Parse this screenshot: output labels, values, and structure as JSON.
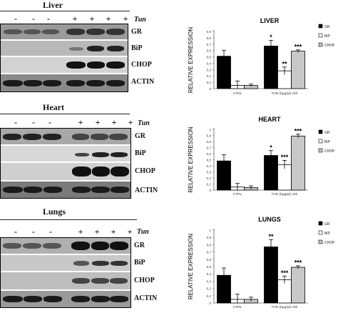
{
  "blots": [
    {
      "title": "Liver",
      "signs": [
        "-",
        "-",
        "-",
        "+",
        "+",
        "+",
        "+"
      ],
      "tun_label": "Tun",
      "lanes": [
        "GR",
        "BiP",
        "CHOP",
        "ACTIN"
      ]
    },
    {
      "title": "Heart",
      "signs": [
        "-",
        "-",
        "-",
        "+",
        "+",
        "+",
        "+"
      ],
      "tun_label": "Tun",
      "lanes": [
        "GR",
        "BiP",
        "CHOP",
        "ACTIN"
      ]
    },
    {
      "title": "Lungs",
      "signs": [
        "-",
        "-",
        "-",
        "+",
        "+",
        "+",
        "+"
      ],
      "tun_label": "Tun",
      "lanes": [
        "GR",
        "BiP",
        "CHOP",
        "ACTIN"
      ]
    }
  ],
  "chart_data": [
    {
      "type": "bar",
      "title": "LIVER",
      "ylabel": "RELATIVE EXPRESSION",
      "categories": [
        "CTRL",
        "TUN (5µg/µl) 24h"
      ],
      "ylim": [
        0,
        0.9
      ],
      "yticks": [
        0,
        0.1,
        0.2,
        0.3,
        0.4,
        0.5,
        0.6,
        0.7,
        0.8,
        0.9
      ],
      "yticklabels": [
        "0",
        "0,1",
        "0,2",
        "0,3",
        "0,4",
        "0,5",
        "0,6",
        "0,7",
        "0,8",
        "0,9"
      ],
      "legend": "right",
      "series": [
        {
          "name": "GR",
          "values": [
            0.51,
            0.67
          ],
          "errors": [
            0.09,
            0.09
          ],
          "annotations": [
            "",
            "*"
          ],
          "color": "#000000"
        },
        {
          "name": "BiP",
          "values": [
            0.05,
            0.28
          ],
          "errors": [
            0.07,
            0.06
          ],
          "annotations": [
            "",
            "**"
          ],
          "color": "#ffffff"
        },
        {
          "name": "CHOP",
          "values": [
            0.05,
            0.59
          ],
          "errors": [
            0.02,
            0.02
          ],
          "annotations": [
            "",
            "***"
          ],
          "color": "#c8c8c8"
        }
      ]
    },
    {
      "type": "bar",
      "title": "HEART",
      "ylabel": "RELATIVE EXPRESSION",
      "categories": [
        "CTRL",
        "TUN (5µg/µl) 24h"
      ],
      "ylim": [
        0,
        1
      ],
      "yticks": [
        0,
        0.1,
        0.2,
        0.3,
        0.4,
        0.5,
        0.6,
        0.7,
        0.8,
        0.9,
        1
      ],
      "yticklabels": [
        "0",
        "0,1",
        "0,2",
        "0,3",
        "0,4",
        "0,5",
        "0,6",
        "0,7",
        "0,8",
        "0,9",
        "1"
      ],
      "legend": "right",
      "series": [
        {
          "name": "GR",
          "values": [
            0.48,
            0.57
          ],
          "errors": [
            0.1,
            0.08
          ],
          "annotations": [
            "",
            "*"
          ],
          "color": "#000000"
        },
        {
          "name": "BiP",
          "values": [
            0.05,
            0.42
          ],
          "errors": [
            0.06,
            0.07
          ],
          "annotations": [
            "",
            "***"
          ],
          "color": "#ffffff"
        },
        {
          "name": "CHOP",
          "values": [
            0.04,
            0.89
          ],
          "errors": [
            0.03,
            0.03
          ],
          "annotations": [
            "",
            "***"
          ],
          "color": "#c8c8c8"
        }
      ]
    },
    {
      "type": "bar",
      "title": "LUNGS",
      "ylabel": "RELATIVE EXPRESSION",
      "categories": [
        "CTRL",
        "TUN (5µg/µl) 24h"
      ],
      "ylim": [
        0,
        1
      ],
      "yticks": [
        0,
        0.1,
        0.2,
        0.3,
        0.4,
        0.5,
        0.6,
        0.7,
        0.8,
        0.9,
        1
      ],
      "yticklabels": [
        "0",
        "0,1",
        "0,2",
        "0,3",
        "0,4",
        "0,5",
        "0,6",
        "0,7",
        "0,8",
        "0,9",
        "1"
      ],
      "legend": "right",
      "series": [
        {
          "name": "GR",
          "values": [
            0.38,
            0.77
          ],
          "errors": [
            0.1,
            0.1
          ],
          "annotations": [
            "",
            "**"
          ],
          "color": "#000000"
        },
        {
          "name": "BiP",
          "values": [
            0.05,
            0.32
          ],
          "errors": [
            0.07,
            0.05
          ],
          "annotations": [
            "",
            "***"
          ],
          "color": "#ffffff"
        },
        {
          "name": "CHOP",
          "values": [
            0.05,
            0.49
          ],
          "errors": [
            0.03,
            0.02
          ],
          "annotations": [
            "",
            "***"
          ],
          "color": "#c8c8c8"
        }
      ]
    }
  ]
}
